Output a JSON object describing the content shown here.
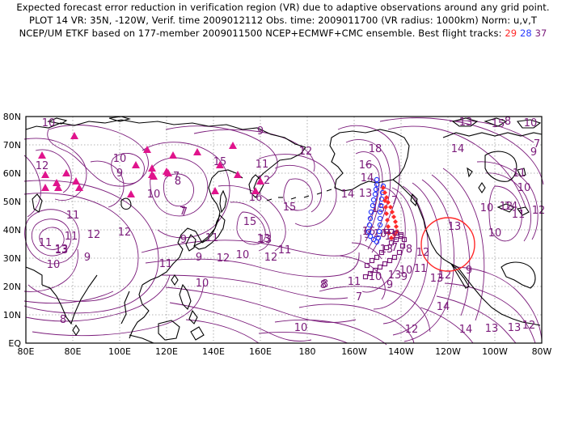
{
  "header": {
    "line1": "Expected forecast error reduction in verification region (VR) due to adaptive observations around any grid point.",
    "line2": "PLOT 14 VR: 35N, -120W, Verif. time 2009012112 Obs. time: 2009011700 (VR radius: 1000km) Norm: u,v,T",
    "line3_prefix": "NCEP/UM ETKF based on 177-member 2009011500 NCEP+ECMWF+CMC ensemble. Best flight tracks:",
    "track_red": "29",
    "track_blue": "28",
    "track_purple": "37"
  },
  "colors": {
    "contour": "#7a1a7a",
    "coast": "#000000",
    "grid": "#9a9a9a",
    "track_red": "#ff2a2a",
    "track_blue": "#2a3cff",
    "track_purple": "#7a1a7a",
    "vr_circle": "#ff2a2a",
    "triangle": "#e0148c"
  },
  "axes": {
    "x_labels": [
      "80E",
      "80E",
      "100E",
      "120E",
      "140E",
      "160E",
      "180",
      "160W",
      "140W",
      "120W",
      "100W",
      "80W"
    ],
    "y_labels": [
      "EQ",
      "10N",
      "20N",
      "30N",
      "40N",
      "50N",
      "60N",
      "70N",
      "80N"
    ]
  },
  "verification_region": {
    "lat": 35,
    "lon": -120,
    "radius_km": 1000
  },
  "contour_labels": [
    "10",
    "12",
    "10",
    "9",
    "11",
    "8",
    "12",
    "13",
    "11",
    "12",
    "10",
    "9",
    "13",
    "11",
    "12",
    "7",
    "9",
    "10",
    "12",
    "11",
    "13",
    "10",
    "7",
    "9",
    "8",
    "10",
    "11",
    "7",
    "8",
    "15",
    "16",
    "9",
    "12",
    "11",
    "15",
    "13",
    "15",
    "12",
    "10",
    "8",
    "7",
    "9",
    "13",
    "12",
    "10",
    "9",
    "15",
    "13",
    "14",
    "16",
    "18",
    "14",
    "16",
    "7",
    "14",
    "13",
    "12",
    "15",
    "11",
    "10",
    "9",
    "13",
    "14",
    "12",
    "10",
    "13",
    "12",
    "13",
    "11",
    "10",
    "7",
    "8",
    "12",
    "9",
    "11",
    "10",
    "14",
    "13",
    "12",
    "14",
    "13",
    "11",
    "10",
    "9",
    "7",
    "8",
    "10",
    "12",
    "11"
  ]
}
